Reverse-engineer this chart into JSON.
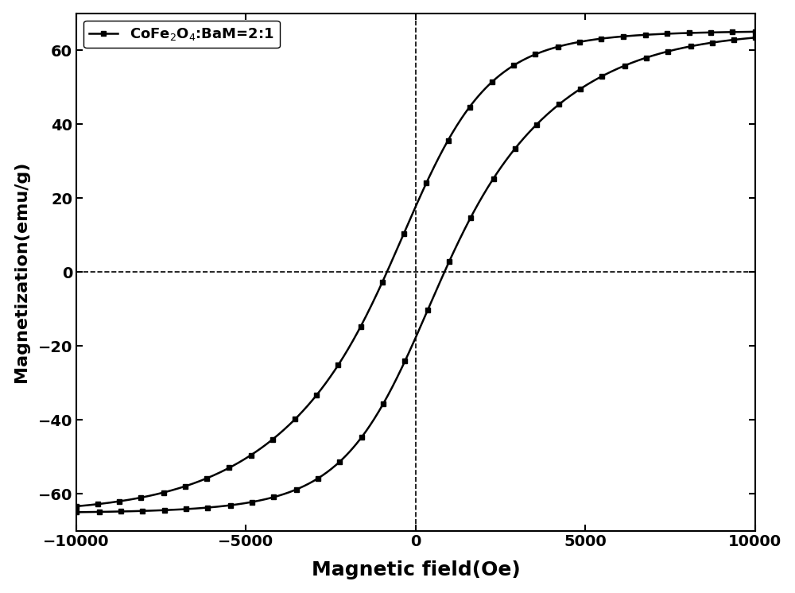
{
  "title": "",
  "xlabel": "Magnetic field(Oe)",
  "ylabel": "Magnetization(emu/g)",
  "xlim": [
    -10000,
    10000
  ],
  "ylim": [
    -70,
    70
  ],
  "xticks": [
    -10000,
    -5000,
    0,
    5000,
    10000
  ],
  "yticks": [
    -60,
    -40,
    -20,
    0,
    20,
    40,
    60
  ],
  "legend_label": "CoFe$_2$O$_4$:BaM=2:1",
  "line_color": "#000000",
  "marker": "s",
  "markersize": 5,
  "linewidth": 1.8,
  "xlabel_fontsize": 18,
  "ylabel_fontsize": 16,
  "tick_fontsize": 14,
  "legend_fontsize": 13,
  "saturation_mag": 65,
  "remanence": 38,
  "Hc_soft": 200,
  "Hc_hard": 2400,
  "background_color": "#ffffff",
  "n_markers": 32
}
